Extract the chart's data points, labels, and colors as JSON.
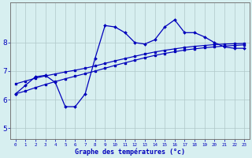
{
  "xlabel": "Graphe des températures (°c)",
  "bg_color": "#d7eff0",
  "grid_color": "#b0c8c8",
  "line_color": "#0000bb",
  "xlim": [
    -0.5,
    23.5
  ],
  "ylim": [
    4.6,
    9.4
  ],
  "xticks": [
    0,
    1,
    2,
    3,
    4,
    5,
    6,
    7,
    8,
    9,
    10,
    11,
    12,
    13,
    14,
    15,
    16,
    17,
    18,
    19,
    20,
    21,
    22,
    23
  ],
  "yticks": [
    5,
    6,
    7,
    8
  ],
  "curve1_x": [
    0,
    1,
    2,
    3,
    4,
    5,
    6,
    7,
    8,
    9,
    10,
    11,
    12,
    13,
    14,
    15,
    16,
    17,
    18,
    19,
    20,
    21,
    22,
    23
  ],
  "curve1_y": [
    6.2,
    6.5,
    6.8,
    6.85,
    6.6,
    5.75,
    5.75,
    6.2,
    7.45,
    8.6,
    8.55,
    8.35,
    8.0,
    7.95,
    8.1,
    8.55,
    8.8,
    8.35,
    8.35,
    8.2,
    8.0,
    7.85,
    7.8,
    7.8
  ],
  "curve2_x": [
    0,
    1,
    2,
    3,
    4,
    5,
    6,
    7,
    8,
    9,
    10,
    11,
    12,
    13,
    14,
    15,
    16,
    17,
    18,
    19,
    20,
    21,
    22,
    23
  ],
  "curve2_y": [
    6.55,
    6.65,
    6.75,
    6.83,
    6.9,
    6.97,
    7.03,
    7.1,
    7.18,
    7.27,
    7.36,
    7.44,
    7.52,
    7.6,
    7.67,
    7.73,
    7.78,
    7.83,
    7.87,
    7.9,
    7.93,
    7.95,
    7.96,
    7.97
  ],
  "curve3_x": [
    0,
    1,
    2,
    3,
    4,
    5,
    6,
    7,
    8,
    9,
    10,
    11,
    12,
    13,
    14,
    15,
    16,
    17,
    18,
    19,
    20,
    21,
    22,
    23
  ],
  "curve3_y": [
    6.2,
    6.3,
    6.42,
    6.53,
    6.63,
    6.73,
    6.82,
    6.91,
    7.0,
    7.1,
    7.2,
    7.29,
    7.38,
    7.47,
    7.55,
    7.62,
    7.68,
    7.74,
    7.78,
    7.82,
    7.85,
    7.88,
    7.9,
    7.92
  ]
}
